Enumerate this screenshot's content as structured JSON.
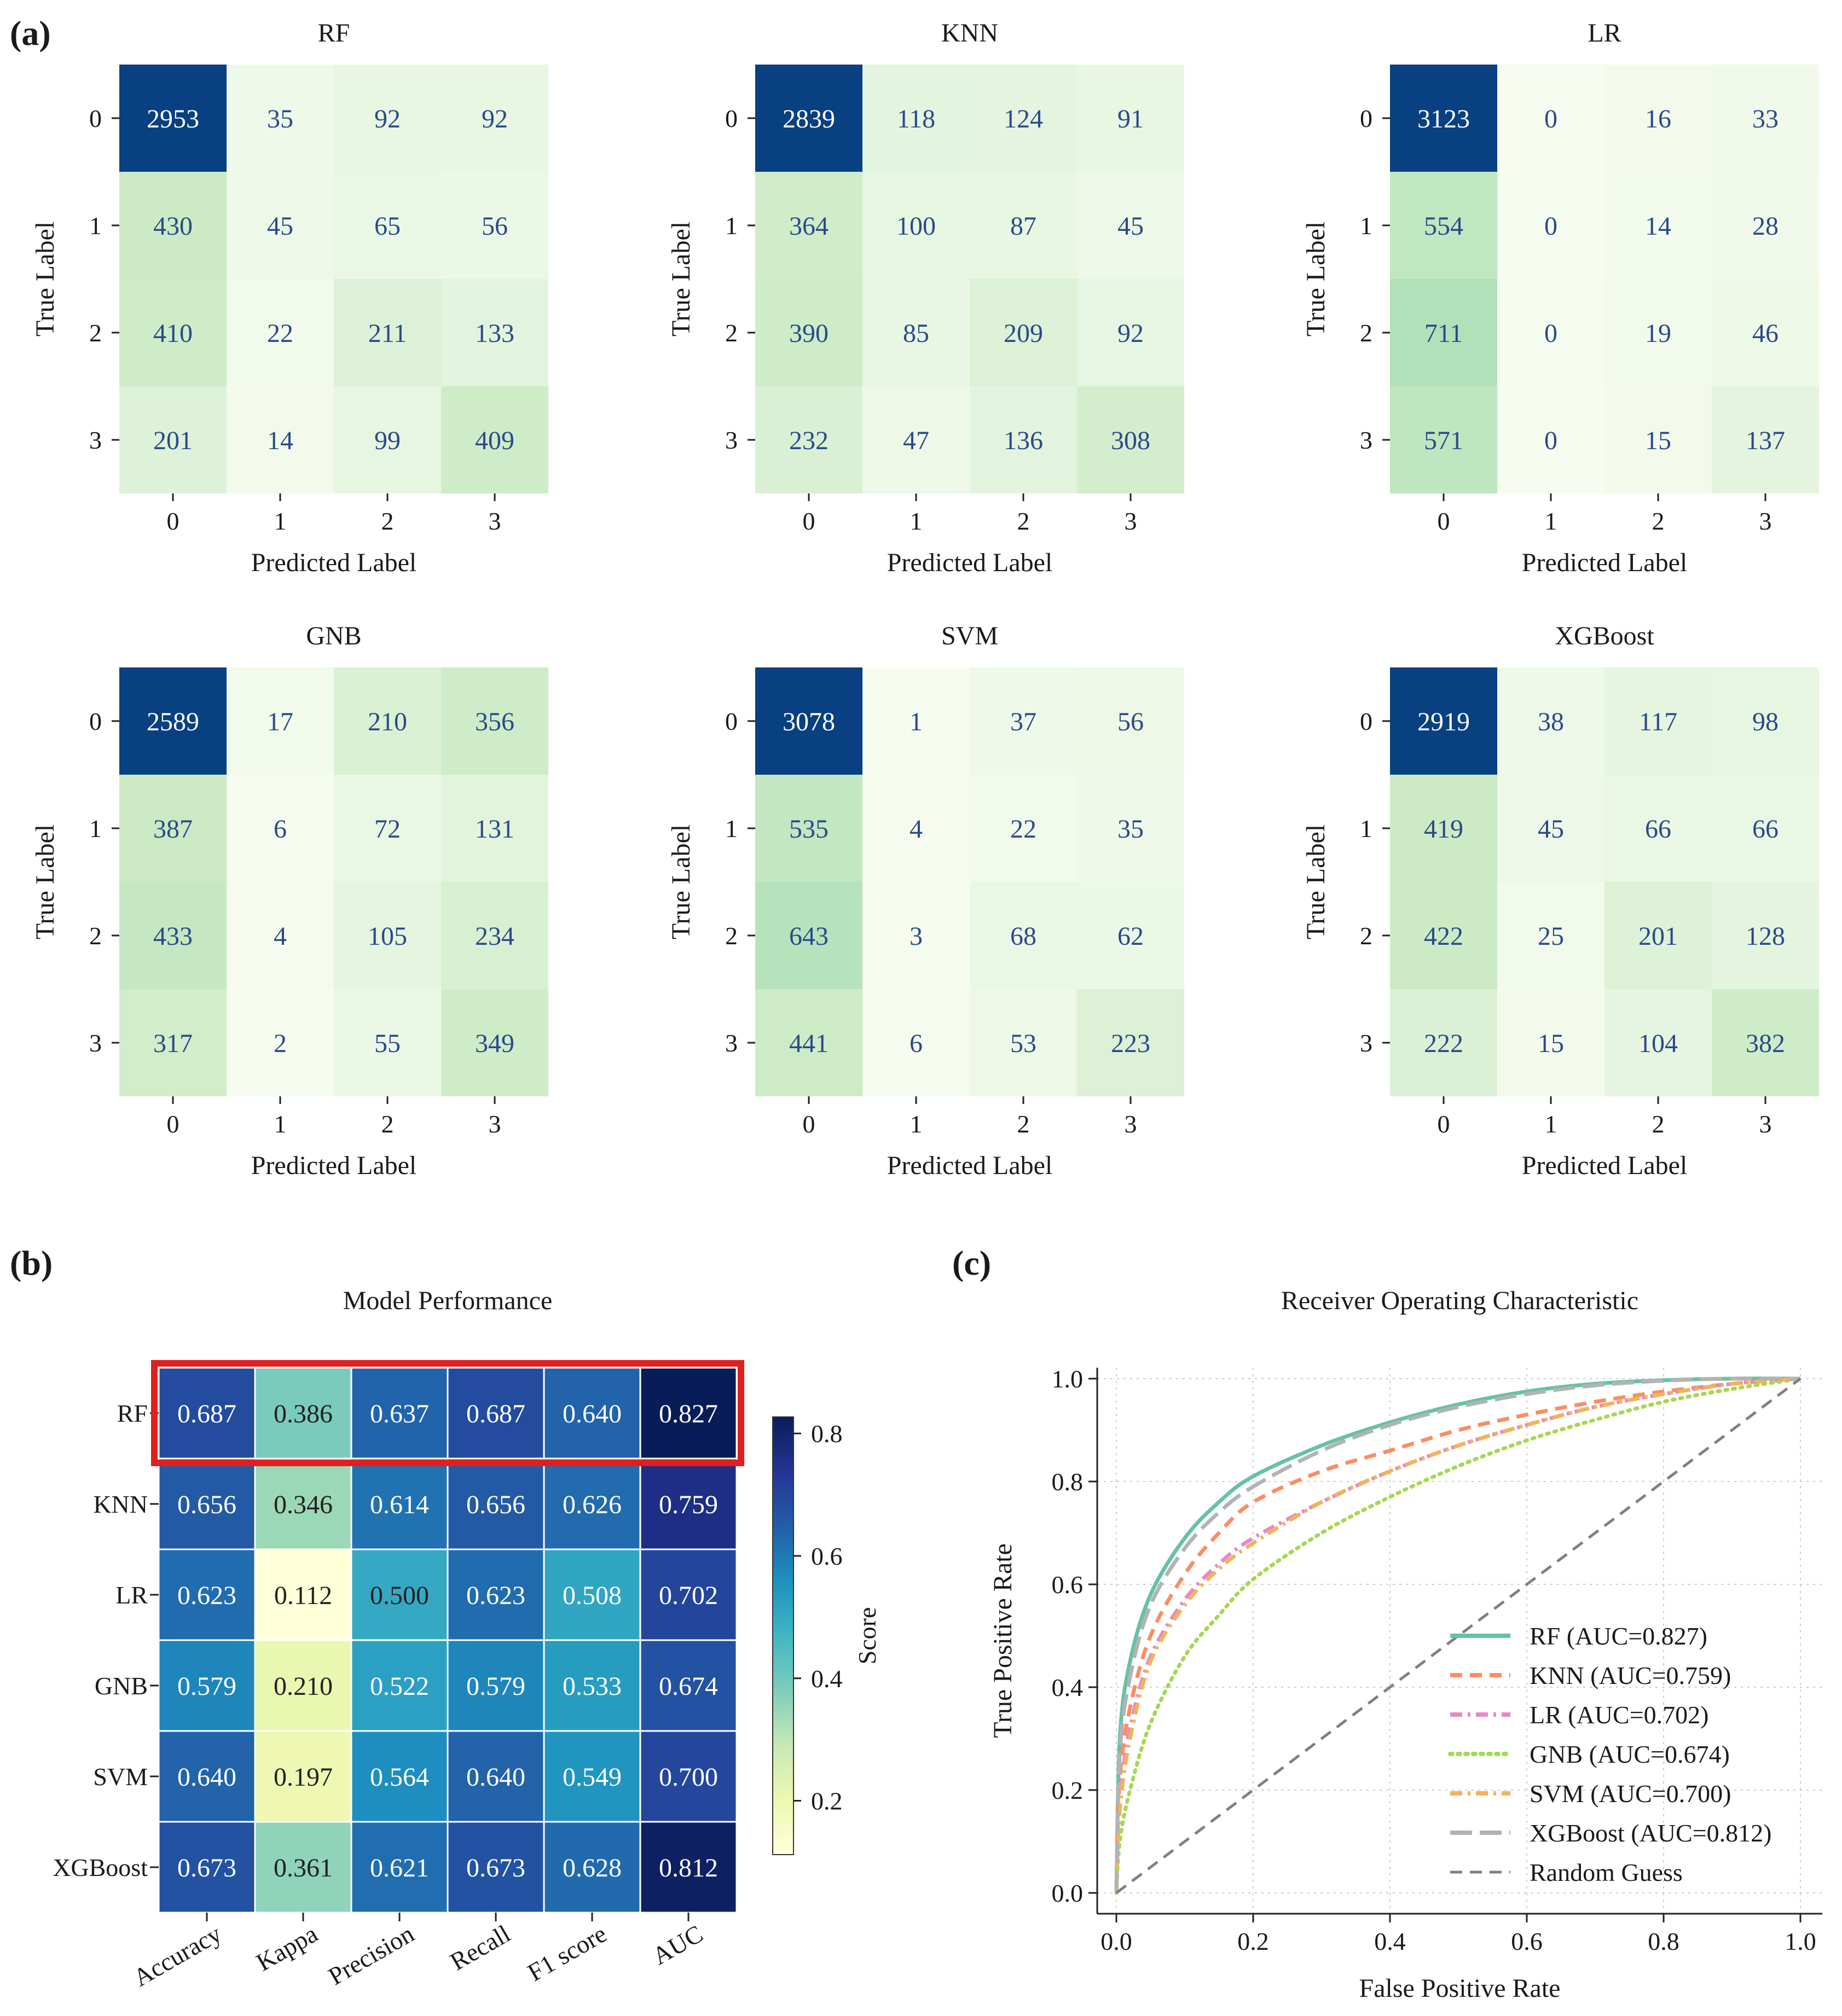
{
  "panel_labels": {
    "a": "(a)",
    "b": "(b)",
    "c": "(c)"
  },
  "chart_data": [
    {
      "type": "heatmap",
      "kind": "confusion_matrix",
      "title": "RF",
      "xlabel": "Predicted Label",
      "ylabel": "True Label",
      "x_ticks": [
        "0",
        "1",
        "2",
        "3"
      ],
      "y_ticks": [
        "0",
        "1",
        "2",
        "3"
      ],
      "matrix": [
        [
          2953,
          35,
          92,
          92
        ],
        [
          430,
          45,
          65,
          56
        ],
        [
          410,
          22,
          211,
          133
        ],
        [
          201,
          14,
          99,
          409
        ]
      ]
    },
    {
      "type": "heatmap",
      "kind": "confusion_matrix",
      "title": "KNN",
      "xlabel": "Predicted Label",
      "ylabel": "True Label",
      "x_ticks": [
        "0",
        "1",
        "2",
        "3"
      ],
      "y_ticks": [
        "0",
        "1",
        "2",
        "3"
      ],
      "matrix": [
        [
          2839,
          118,
          124,
          91
        ],
        [
          364,
          100,
          87,
          45
        ],
        [
          390,
          85,
          209,
          92
        ],
        [
          232,
          47,
          136,
          308
        ]
      ]
    },
    {
      "type": "heatmap",
      "kind": "confusion_matrix",
      "title": "LR",
      "xlabel": "Predicted Label",
      "ylabel": "True Label",
      "x_ticks": [
        "0",
        "1",
        "2",
        "3"
      ],
      "y_ticks": [
        "0",
        "1",
        "2",
        "3"
      ],
      "matrix": [
        [
          3123,
          0,
          16,
          33
        ],
        [
          554,
          0,
          14,
          28
        ],
        [
          711,
          0,
          19,
          46
        ],
        [
          571,
          0,
          15,
          137
        ]
      ]
    },
    {
      "type": "heatmap",
      "kind": "confusion_matrix",
      "title": "GNB",
      "xlabel": "Predicted Label",
      "ylabel": "True Label",
      "x_ticks": [
        "0",
        "1",
        "2",
        "3"
      ],
      "y_ticks": [
        "0",
        "1",
        "2",
        "3"
      ],
      "matrix": [
        [
          2589,
          17,
          210,
          356
        ],
        [
          387,
          6,
          72,
          131
        ],
        [
          433,
          4,
          105,
          234
        ],
        [
          317,
          2,
          55,
          349
        ]
      ]
    },
    {
      "type": "heatmap",
      "kind": "confusion_matrix",
      "title": "SVM",
      "xlabel": "Predicted Label",
      "ylabel": "True Label",
      "x_ticks": [
        "0",
        "1",
        "2",
        "3"
      ],
      "y_ticks": [
        "0",
        "1",
        "2",
        "3"
      ],
      "matrix": [
        [
          3078,
          1,
          37,
          56
        ],
        [
          535,
          4,
          22,
          35
        ],
        [
          643,
          3,
          68,
          62
        ],
        [
          441,
          6,
          53,
          223
        ]
      ]
    },
    {
      "type": "heatmap",
      "kind": "confusion_matrix",
      "title": "XGBoost",
      "xlabel": "Predicted Label",
      "ylabel": "True Label",
      "x_ticks": [
        "0",
        "1",
        "2",
        "3"
      ],
      "y_ticks": [
        "0",
        "1",
        "2",
        "3"
      ],
      "matrix": [
        [
          2919,
          38,
          117,
          98
        ],
        [
          419,
          45,
          66,
          66
        ],
        [
          422,
          25,
          201,
          128
        ],
        [
          222,
          15,
          104,
          382
        ]
      ]
    },
    {
      "type": "heatmap",
      "kind": "score_table",
      "title": "Model Performance",
      "rows": [
        "RF",
        "KNN",
        "LR",
        "GNB",
        "SVM",
        "XGBoost"
      ],
      "columns": [
        "Accuracy",
        "Kappa",
        "Precision",
        "Recall",
        "F1 score",
        "AUC"
      ],
      "values": [
        [
          "0.687",
          "0.386",
          "0.637",
          "0.687",
          "0.640",
          "0.827"
        ],
        [
          "0.656",
          "0.346",
          "0.614",
          "0.656",
          "0.626",
          "0.759"
        ],
        [
          "0.623",
          "0.112",
          "0.500",
          "0.623",
          "0.508",
          "0.702"
        ],
        [
          "0.579",
          "0.210",
          "0.522",
          "0.579",
          "0.533",
          "0.674"
        ],
        [
          "0.640",
          "0.197",
          "0.564",
          "0.640",
          "0.549",
          "0.700"
        ],
        [
          "0.673",
          "0.361",
          "0.621",
          "0.673",
          "0.628",
          "0.812"
        ]
      ],
      "highlighted_row": "RF",
      "highlight_color": "#e02020",
      "colorbar": {
        "label": "Score",
        "ticks": [
          "0.2",
          "0.4",
          "0.6",
          "0.8"
        ],
        "tick_values": [
          0.2,
          0.4,
          0.6,
          0.8
        ],
        "min": 0.112,
        "max": 0.827
      }
    },
    {
      "type": "line",
      "title": "Receiver Operating Characteristic",
      "xlabel": "False Positive Rate",
      "ylabel": "True Positive Rate",
      "xlim": [
        0,
        1
      ],
      "ylim": [
        0,
        1
      ],
      "grid": true,
      "legend": "lower-right",
      "x_ticks": [
        "0.0",
        "0.2",
        "0.4",
        "0.6",
        "0.8",
        "1.0"
      ],
      "y_ticks": [
        "0.0",
        "0.2",
        "0.4",
        "0.6",
        "0.8",
        "1.0"
      ],
      "series": [
        {
          "name": "RF (AUC=0.827)",
          "color": "#66c2a5",
          "dash": "solid",
          "x": [
            0,
            0.005,
            0.02,
            0.05,
            0.1,
            0.15,
            0.2,
            0.3,
            0.4,
            0.5,
            0.6,
            0.7,
            0.8,
            0.9,
            1.0
          ],
          "y": [
            0,
            0.3,
            0.45,
            0.58,
            0.69,
            0.76,
            0.81,
            0.87,
            0.915,
            0.95,
            0.975,
            0.99,
            0.997,
            1.0,
            1.0
          ]
        },
        {
          "name": "KNN (AUC=0.759)",
          "color": "#fc8d62",
          "dash": "dashed",
          "x": [
            0,
            0.005,
            0.02,
            0.05,
            0.1,
            0.15,
            0.2,
            0.3,
            0.4,
            0.5,
            0.6,
            0.7,
            0.8,
            0.9,
            1.0
          ],
          "y": [
            0,
            0.22,
            0.36,
            0.5,
            0.62,
            0.7,
            0.76,
            0.82,
            0.86,
            0.9,
            0.93,
            0.955,
            0.975,
            0.99,
            1.0
          ]
        },
        {
          "name": "LR (AUC=0.702)",
          "color": "#e78ac3",
          "dash": "dashdot",
          "x": [
            0,
            0.005,
            0.02,
            0.05,
            0.1,
            0.15,
            0.2,
            0.3,
            0.4,
            0.5,
            0.6,
            0.7,
            0.8,
            0.9,
            1.0
          ],
          "y": [
            0,
            0.18,
            0.32,
            0.46,
            0.57,
            0.64,
            0.69,
            0.76,
            0.82,
            0.87,
            0.91,
            0.945,
            0.97,
            0.99,
            1.0
          ]
        },
        {
          "name": "GNB (AUC=0.674)",
          "color": "#a6d854",
          "dash": "dotted",
          "x": [
            0,
            0.005,
            0.02,
            0.05,
            0.1,
            0.15,
            0.2,
            0.3,
            0.4,
            0.5,
            0.6,
            0.7,
            0.8,
            0.9,
            1.0
          ],
          "y": [
            0,
            0.1,
            0.2,
            0.33,
            0.46,
            0.54,
            0.61,
            0.7,
            0.77,
            0.83,
            0.88,
            0.92,
            0.955,
            0.98,
            1.0
          ]
        },
        {
          "name": "SVM (AUC=0.700)",
          "color": "#f2b35c",
          "dash": "dashdot",
          "x": [
            0,
            0.005,
            0.02,
            0.05,
            0.1,
            0.15,
            0.2,
            0.3,
            0.4,
            0.5,
            0.6,
            0.7,
            0.8,
            0.9,
            1.0
          ],
          "y": [
            0,
            0.16,
            0.3,
            0.45,
            0.56,
            0.63,
            0.68,
            0.76,
            0.82,
            0.87,
            0.91,
            0.945,
            0.97,
            0.99,
            1.0
          ]
        },
        {
          "name": "XGBoost (AUC=0.812)",
          "color": "#b3b3b3",
          "dash": "longdash",
          "x": [
            0,
            0.005,
            0.02,
            0.05,
            0.1,
            0.15,
            0.2,
            0.3,
            0.4,
            0.5,
            0.6,
            0.7,
            0.8,
            0.9,
            1.0
          ],
          "y": [
            0,
            0.27,
            0.42,
            0.56,
            0.67,
            0.74,
            0.79,
            0.86,
            0.91,
            0.945,
            0.97,
            0.987,
            0.996,
            1.0,
            1.0
          ]
        },
        {
          "name": "Random Guess",
          "color": "#808080",
          "dash": "dashed",
          "x": [
            0,
            1
          ],
          "y": [
            0,
            1
          ]
        }
      ]
    }
  ]
}
